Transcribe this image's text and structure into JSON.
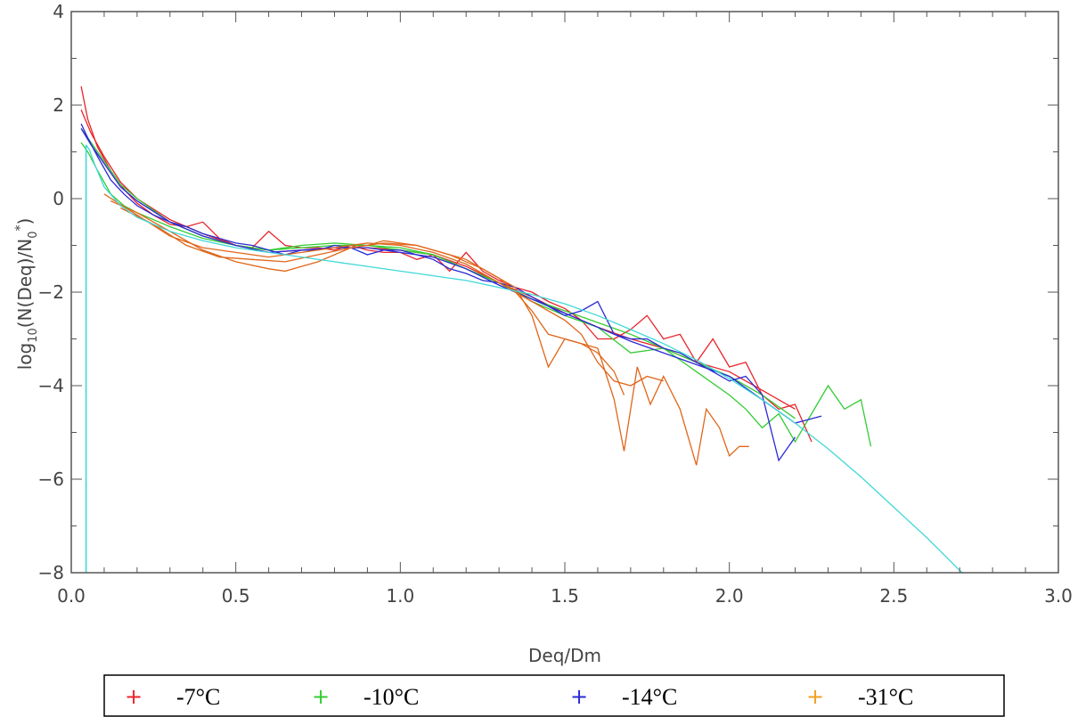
{
  "chart_data": {
    "type": "line",
    "xlabel": "Deq/Dm",
    "ylabel": "log10(N(Deq)/N0*)",
    "ylabel_parts": {
      "base": "log",
      "sub": "10",
      "mid": "(N(Deq)/N",
      "sub2": "0",
      "sup": "*",
      "end": ")"
    },
    "xlim": [
      0.0,
      3.0
    ],
    "ylim": [
      -8,
      4
    ],
    "x_ticks": [
      {
        "value": 0.0,
        "label": "0.0"
      },
      {
        "value": 0.5,
        "label": "0.5"
      },
      {
        "value": 1.0,
        "label": "1.0"
      },
      {
        "value": 1.5,
        "label": "1.5"
      },
      {
        "value": 2.0,
        "label": "2.0"
      },
      {
        "value": 2.5,
        "label": "2.5"
      },
      {
        "value": 3.0,
        "label": "3.0"
      }
    ],
    "y_ticks": [
      {
        "value": 4,
        "label": "4"
      },
      {
        "value": 2,
        "label": "2"
      },
      {
        "value": 0,
        "label": "0"
      },
      {
        "value": -2,
        "label": "−2"
      },
      {
        "value": -4,
        "label": "−4"
      },
      {
        "value": -6,
        "label": "−6"
      },
      {
        "value": -8,
        "label": "−8"
      }
    ],
    "grid": false,
    "legend_position": "bottom",
    "legend": [
      {
        "marker": "+",
        "label": "-7°C",
        "color": "#e8242b"
      },
      {
        "marker": "+",
        "label": "-10°C",
        "color": "#33cc33"
      },
      {
        "marker": "+",
        "label": "-14°C",
        "color": "#2a2ad4"
      },
      {
        "marker": "+",
        "label": "-31°C",
        "color": "#f0a020"
      }
    ],
    "series": [
      {
        "color": "#e8242b",
        "x": [
          0.03,
          0.05,
          0.08,
          0.12,
          0.16,
          0.2,
          0.25,
          0.3,
          0.35,
          0.4,
          0.45,
          0.5,
          0.55,
          0.6,
          0.65,
          0.7,
          0.75,
          0.8,
          0.85,
          0.9,
          0.95,
          1.0,
          1.05,
          1.1,
          1.15,
          1.2,
          1.25,
          1.3,
          1.35,
          1.4,
          1.45,
          1.5,
          1.55,
          1.6,
          1.65,
          1.7,
          1.75,
          1.8,
          1.85,
          1.9,
          1.95,
          2.0,
          2.05,
          2.1,
          2.15,
          2.2,
          2.25
        ],
        "y": [
          2.4,
          1.7,
          1.1,
          0.6,
          0.2,
          -0.1,
          -0.35,
          -0.55,
          -0.6,
          -0.5,
          -0.85,
          -1.0,
          -1.05,
          -0.7,
          -1.0,
          -1.05,
          -1.05,
          -1.1,
          -1.0,
          -1.1,
          -1.15,
          -1.15,
          -1.3,
          -1.2,
          -1.55,
          -1.15,
          -1.55,
          -1.75,
          -1.9,
          -2.0,
          -2.2,
          -2.35,
          -2.6,
          -3.0,
          -3.0,
          -2.8,
          -2.5,
          -3.0,
          -2.9,
          -3.5,
          -3.0,
          -3.6,
          -3.5,
          -4.2,
          -4.5,
          -4.4,
          -5.2
        ]
      },
      {
        "color": "#e8242b",
        "x": [
          0.03,
          0.06,
          0.1,
          0.15,
          0.2,
          0.3,
          0.4,
          0.5,
          0.6,
          0.7,
          0.8,
          0.9,
          1.0,
          1.1,
          1.2,
          1.3,
          1.4,
          1.5,
          1.6,
          1.7,
          1.8,
          1.9,
          2.0,
          2.1,
          2.2
        ],
        "y": [
          1.9,
          1.4,
          0.9,
          0.35,
          0.0,
          -0.45,
          -0.75,
          -1.0,
          -1.15,
          -1.1,
          -1.05,
          -1.05,
          -1.1,
          -1.2,
          -1.45,
          -1.8,
          -2.1,
          -2.45,
          -2.75,
          -3.0,
          -3.2,
          -3.5,
          -3.7,
          -4.1,
          -4.5
        ]
      },
      {
        "color": "#33cc33",
        "x": [
          0.03,
          0.05,
          0.08,
          0.12,
          0.16,
          0.2,
          0.3,
          0.4,
          0.5,
          0.6,
          0.7,
          0.8,
          0.9,
          1.0,
          1.1,
          1.2,
          1.3,
          1.4,
          1.5,
          1.6,
          1.7,
          1.8,
          1.9,
          2.0,
          2.05,
          2.1,
          2.15,
          2.2,
          2.25,
          2.3,
          2.35,
          2.4,
          2.43
        ],
        "y": [
          1.2,
          1.0,
          0.6,
          0.1,
          -0.15,
          -0.3,
          -0.6,
          -0.85,
          -1.0,
          -1.1,
          -1.0,
          -0.95,
          -1.0,
          -1.05,
          -1.2,
          -1.5,
          -1.8,
          -2.2,
          -2.5,
          -2.75,
          -3.3,
          -3.2,
          -3.7,
          -4.2,
          -4.5,
          -4.9,
          -4.6,
          -5.2,
          -4.6,
          -4.0,
          -4.5,
          -4.3,
          -5.3
        ]
      },
      {
        "color": "#33cc33",
        "x": [
          0.03,
          0.06,
          0.1,
          0.15,
          0.2,
          0.3,
          0.4,
          0.5,
          0.6,
          0.7,
          0.8,
          0.9,
          1.0,
          1.1,
          1.2,
          1.3,
          1.4,
          1.5,
          1.6,
          1.7,
          1.8,
          1.9,
          2.0,
          2.1,
          2.2
        ],
        "y": [
          1.5,
          1.2,
          0.8,
          0.3,
          0.0,
          -0.5,
          -0.8,
          -1.0,
          -1.1,
          -1.05,
          -1.0,
          -1.0,
          -1.1,
          -1.2,
          -1.5,
          -1.8,
          -2.15,
          -2.4,
          -2.65,
          -2.9,
          -3.2,
          -3.5,
          -3.8,
          -4.2,
          -4.7
        ]
      },
      {
        "color": "#2a2ad4",
        "x": [
          0.03,
          0.05,
          0.08,
          0.12,
          0.16,
          0.2,
          0.25,
          0.3,
          0.35,
          0.4,
          0.45,
          0.5,
          0.55,
          0.6,
          0.65,
          0.7,
          0.75,
          0.8,
          0.85,
          0.9,
          0.95,
          1.0,
          1.05,
          1.1,
          1.15,
          1.2,
          1.25,
          1.3,
          1.35,
          1.4,
          1.45,
          1.5,
          1.55,
          1.6,
          1.65,
          1.7,
          1.75,
          1.8,
          1.85,
          1.9,
          1.95,
          2.0,
          2.05,
          2.1,
          2.15,
          2.2
        ],
        "y": [
          1.6,
          1.3,
          0.9,
          0.4,
          0.1,
          -0.15,
          -0.35,
          -0.5,
          -0.6,
          -0.75,
          -0.85,
          -0.95,
          -1.0,
          -1.1,
          -1.2,
          -1.1,
          -1.1,
          -1.0,
          -1.05,
          -1.2,
          -1.1,
          -1.1,
          -1.2,
          -1.3,
          -1.5,
          -1.6,
          -1.75,
          -1.8,
          -1.9,
          -2.1,
          -2.3,
          -2.5,
          -2.4,
          -2.2,
          -2.9,
          -3.0,
          -3.0,
          -3.2,
          -3.3,
          -3.5,
          -3.7,
          -3.9,
          -3.8,
          -4.2,
          -5.6,
          -5.1
        ]
      },
      {
        "color": "#2a2ad4",
        "x": [
          0.03,
          0.06,
          0.1,
          0.15,
          0.2,
          0.3,
          0.4,
          0.5,
          0.6,
          0.7,
          0.8,
          0.9,
          1.0,
          1.1,
          1.2,
          1.3,
          1.4,
          1.5,
          1.6,
          1.7,
          1.8,
          1.9,
          2.0,
          2.1,
          2.2,
          2.28
        ],
        "y": [
          1.5,
          1.15,
          0.75,
          0.25,
          -0.05,
          -0.5,
          -0.8,
          -1.0,
          -1.15,
          -1.1,
          -1.05,
          -1.05,
          -1.15,
          -1.25,
          -1.5,
          -1.85,
          -2.15,
          -2.45,
          -2.75,
          -3.05,
          -3.3,
          -3.55,
          -3.8,
          -4.3,
          -4.8,
          -4.65
        ]
      },
      {
        "color": "#e0661a",
        "x": [
          0.12,
          0.2,
          0.3,
          0.4,
          0.5,
          0.6,
          0.65,
          0.7,
          0.75,
          0.8,
          0.85,
          0.9,
          0.95,
          1.0,
          1.05,
          1.1,
          1.2,
          1.3,
          1.35,
          1.4,
          1.45,
          1.5,
          1.55,
          1.6,
          1.65,
          1.68
        ],
        "y": [
          -0.05,
          -0.3,
          -0.7,
          -1.1,
          -1.35,
          -1.5,
          -1.55,
          -1.45,
          -1.35,
          -1.2,
          -1.05,
          -1.0,
          -0.9,
          -0.95,
          -1.0,
          -1.1,
          -1.3,
          -1.7,
          -2.0,
          -2.4,
          -2.9,
          -3.0,
          -3.1,
          -3.3,
          -3.7,
          -4.2
        ]
      },
      {
        "color": "#e0661a",
        "x": [
          0.15,
          0.25,
          0.35,
          0.45,
          0.55,
          0.65,
          0.75,
          0.85,
          0.95,
          1.05,
          1.15,
          1.25,
          1.35,
          1.4,
          1.45,
          1.5,
          1.55,
          1.6,
          1.65,
          1.68,
          1.72,
          1.76,
          1.8,
          1.85,
          1.9,
          1.93,
          1.97,
          2.0,
          2.03,
          2.06
        ],
        "y": [
          -0.2,
          -0.55,
          -1.0,
          -1.25,
          -1.3,
          -1.35,
          -1.2,
          -1.05,
          -0.95,
          -1.0,
          -1.2,
          -1.5,
          -1.9,
          -2.5,
          -3.6,
          -3.0,
          -3.1,
          -3.2,
          -4.3,
          -5.4,
          -3.6,
          -4.4,
          -3.8,
          -4.5,
          -5.7,
          -4.5,
          -4.9,
          -5.5,
          -5.3,
          -5.3
        ]
      },
      {
        "color": "#e0661a",
        "x": [
          0.1,
          0.2,
          0.3,
          0.4,
          0.5,
          0.6,
          0.7,
          0.8,
          0.9,
          1.0,
          1.1,
          1.2,
          1.3,
          1.4,
          1.5,
          1.55,
          1.6,
          1.65,
          1.7,
          1.75,
          1.8
        ],
        "y": [
          0.1,
          -0.35,
          -0.8,
          -1.05,
          -1.15,
          -1.25,
          -1.15,
          -1.05,
          -0.95,
          -1.0,
          -1.15,
          -1.4,
          -1.8,
          -2.2,
          -2.6,
          -2.9,
          -3.5,
          -3.9,
          -4.0,
          -3.8,
          -3.9
        ]
      },
      {
        "color": "#40d8d8",
        "x": [
          0.045,
          0.055,
          0.07,
          0.1,
          0.15,
          0.2,
          0.3,
          0.4,
          0.5,
          0.6,
          0.7,
          0.8,
          0.9,
          1.0,
          1.1,
          1.2,
          1.3,
          1.4,
          1.5,
          1.6,
          1.7,
          1.8,
          1.9,
          2.0,
          2.1,
          2.2,
          2.3,
          2.4,
          2.5,
          2.6,
          2.7,
          2.74
        ],
        "y": [
          1.15,
          1.05,
          0.75,
          0.25,
          -0.15,
          -0.4,
          -0.7,
          -0.9,
          -1.05,
          -1.15,
          -1.25,
          -1.35,
          -1.45,
          -1.55,
          -1.65,
          -1.75,
          -1.9,
          -2.05,
          -2.25,
          -2.5,
          -2.8,
          -3.1,
          -3.45,
          -3.85,
          -4.3,
          -4.8,
          -5.35,
          -5.95,
          -6.6,
          -7.25,
          -7.95,
          -8.2
        ]
      }
    ]
  },
  "cyan_vertical": {
    "x": 0.045,
    "y_top": 1.15,
    "y_bottom": -8.0,
    "color": "#40d8d8"
  }
}
